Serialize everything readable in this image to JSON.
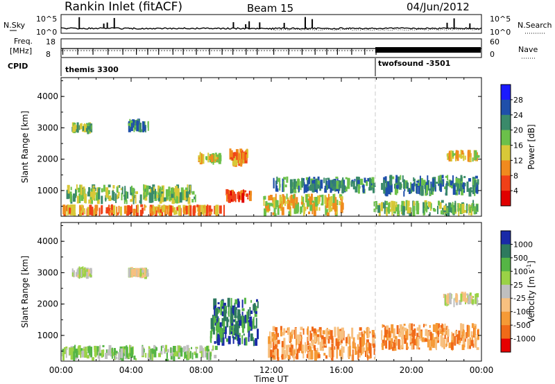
{
  "header": {
    "station": "Rankin Inlet (fitACF)",
    "beam": "Beam 15",
    "date": "04/Jun/2012"
  },
  "strip": {
    "nsky_label": "N.Sky",
    "nsearch_label": "N.Search",
    "nsky_ticks": [
      "10^5",
      "10^0"
    ],
    "nsearch_ticks": [
      "10^5",
      "10^0"
    ],
    "freq_label": "Freq.",
    "freq_unit": "[MHz]",
    "freq_ticks": [
      "18",
      "8"
    ],
    "nave_label": "Nave",
    "nave_ticks": [
      "60",
      "0"
    ],
    "cpid_label": "CPID",
    "cpid_modes": [
      {
        "name": "themis 3300",
        "start_hour": 0
      },
      {
        "name": "twofsound -3501",
        "start_hour": 18
      }
    ]
  },
  "chart_data": [
    {
      "type": "heatmap",
      "panel": "power",
      "ylabel": "Slant Range [km]",
      "ylim": [
        180,
        4600
      ],
      "yticks": [
        1000,
        2000,
        3000,
        4000
      ],
      "xlim": [
        0,
        24
      ],
      "colorbar": {
        "label": "Power [dB]",
        "ticks": [
          "4",
          "8",
          "12",
          "16",
          "20",
          "24",
          "28"
        ],
        "colors": [
          "#1a1aff",
          "#1f4faa",
          "#3a8a6a",
          "#6bc04a",
          "#d8c838",
          "#f08a1e",
          "#f04018",
          "#e00000"
        ]
      },
      "echo_regions": [
        {
          "t0": 0.0,
          "t1": 9.4,
          "r0": 180,
          "r1": 560,
          "level": 5
        },
        {
          "t0": 0.3,
          "t1": 7.8,
          "r0": 560,
          "r1": 1200,
          "level": 3
        },
        {
          "t0": 0.6,
          "t1": 1.8,
          "r0": 2850,
          "r1": 3150,
          "level": 3
        },
        {
          "t0": 3.8,
          "t1": 5.1,
          "r0": 2850,
          "r1": 3300,
          "level": 2
        },
        {
          "t0": 9.3,
          "t1": 10.9,
          "r0": 600,
          "r1": 1050,
          "level": 6
        },
        {
          "t0": 9.6,
          "t1": 10.7,
          "r0": 1750,
          "r1": 2350,
          "level": 5
        },
        {
          "t0": 7.8,
          "t1": 9.2,
          "r0": 1900,
          "r1": 2150,
          "level": 4
        },
        {
          "t0": 11.5,
          "t1": 16.2,
          "r0": 180,
          "r1": 900,
          "level": 4
        },
        {
          "t0": 12.0,
          "t1": 18.0,
          "r0": 900,
          "r1": 1450,
          "level": 2
        },
        {
          "t0": 18.2,
          "t1": 23.9,
          "r0": 800,
          "r1": 1500,
          "level": 2
        },
        {
          "t0": 17.8,
          "t1": 23.9,
          "r0": 180,
          "r1": 700,
          "level": 3
        },
        {
          "t0": 22.0,
          "t1": 23.9,
          "r0": 1900,
          "r1": 2300,
          "level": 4
        }
      ]
    },
    {
      "type": "heatmap",
      "panel": "velocity",
      "xlabel": "Time UT",
      "ylabel": "Slant Range [km]",
      "ylim": [
        180,
        4600
      ],
      "yticks": [
        1000,
        2000,
        3000,
        4000
      ],
      "xlim": [
        0,
        24
      ],
      "xticks": [
        "00:00",
        "04:00",
        "08:00",
        "12:00",
        "16:00",
        "20:00",
        "00:00"
      ],
      "colorbar": {
        "label": "Velocity [m s^-1]",
        "ticks": [
          "1000",
          "500",
          "100",
          "25",
          "-25",
          "-100",
          "-500",
          "-1000"
        ],
        "colors": [
          "#1a2aa8",
          "#2e7a5e",
          "#55b545",
          "#9ad246",
          "#bfbfbf",
          "#f7c080",
          "#f59a36",
          "#f06a18",
          "#e60000"
        ]
      },
      "echo_regions": [
        {
          "t0": 0.0,
          "t1": 9.0,
          "r0": 180,
          "r1": 700,
          "level": 3
        },
        {
          "t0": 0.6,
          "t1": 1.8,
          "r0": 2850,
          "r1": 3150,
          "level": 4
        },
        {
          "t0": 3.8,
          "t1": 5.1,
          "r0": 2850,
          "r1": 3150,
          "level": 4
        },
        {
          "t0": 8.5,
          "t1": 11.3,
          "r0": 650,
          "r1": 2200,
          "level": 1
        },
        {
          "t0": 11.8,
          "t1": 18.0,
          "r0": 180,
          "r1": 1300,
          "level": 6
        },
        {
          "t0": 18.2,
          "t1": 23.9,
          "r0": 500,
          "r1": 1400,
          "level": 6
        },
        {
          "t0": 21.8,
          "t1": 23.9,
          "r0": 1900,
          "r1": 2400,
          "level": 4
        }
      ]
    }
  ]
}
